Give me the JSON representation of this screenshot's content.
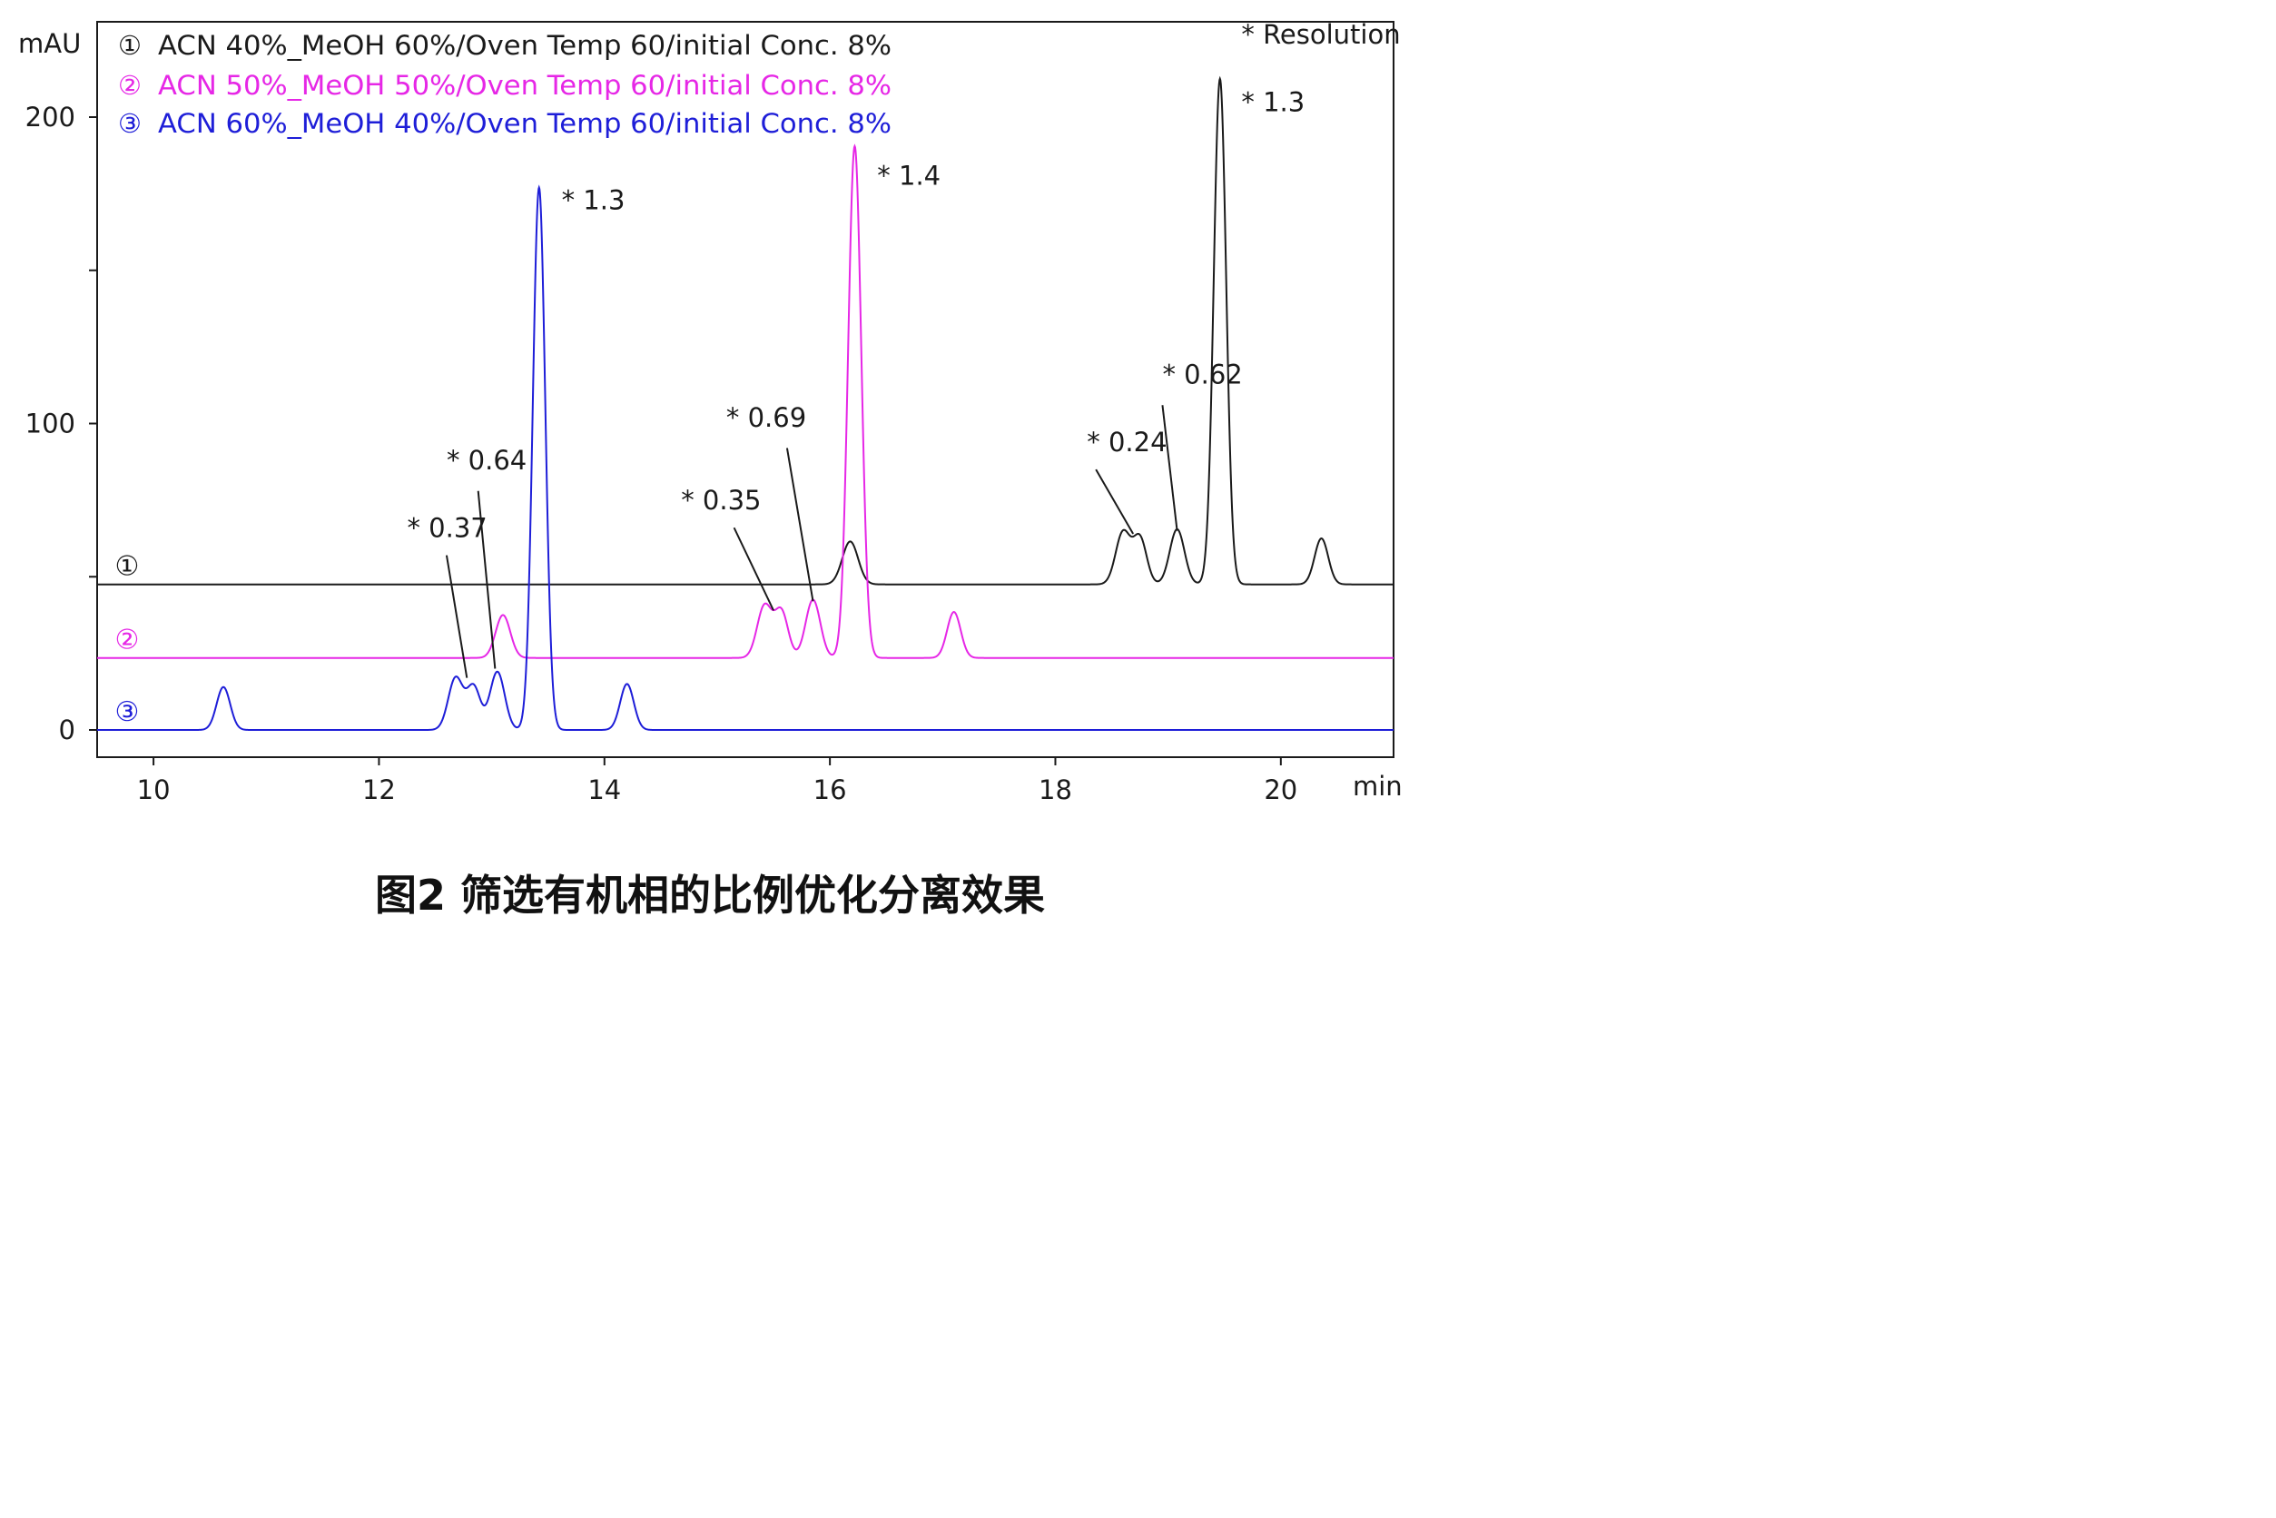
{
  "figure": {
    "caption": "图2 筛选有机相的比例优化分离效果"
  },
  "chart_data": {
    "type": "line",
    "x_unit": "min",
    "y_unit": "mAU",
    "xlim": [
      9.5,
      21.0
    ],
    "ylim": [
      -8,
      230
    ],
    "x_ticks": [
      10,
      12,
      14,
      16,
      18,
      20
    ],
    "x_tick_labels": [
      "10",
      "12",
      "14",
      "16",
      "18",
      "20"
    ],
    "y_ticks": [
      0,
      100,
      200
    ],
    "y_tick_labels": [
      "0",
      "100",
      "200"
    ],
    "y_minor_ticks": [
      50,
      150
    ],
    "grid": false,
    "legend_position": "top-left",
    "series": [
      {
        "id": 1,
        "marker": "①",
        "name": "ACN 40%_MeOH 60%/Oven Temp 60/initial Conc. 8%",
        "color": "#1a1a1a",
        "baseline": 47.5,
        "peaks": [
          {
            "t": 16.18,
            "h": 14,
            "w": 0.07
          },
          {
            "t": 18.6,
            "h": 17,
            "w": 0.065
          },
          {
            "t": 18.75,
            "h": 15,
            "w": 0.06
          },
          {
            "t": 19.08,
            "h": 18,
            "w": 0.065
          },
          {
            "t": 19.46,
            "h": 165,
            "w": 0.055
          },
          {
            "t": 20.36,
            "h": 15,
            "w": 0.06
          }
        ]
      },
      {
        "id": 2,
        "marker": "②",
        "name": "ACN 50%_MeOH 50%/Oven Temp 60/initial Conc. 8%",
        "color": "#e627e6",
        "baseline": 23.5,
        "peaks": [
          {
            "t": 13.1,
            "h": 14,
            "w": 0.065
          },
          {
            "t": 15.42,
            "h": 17,
            "w": 0.065
          },
          {
            "t": 15.57,
            "h": 15,
            "w": 0.06
          },
          {
            "t": 15.85,
            "h": 19,
            "w": 0.065
          },
          {
            "t": 16.22,
            "h": 167,
            "w": 0.058
          },
          {
            "t": 17.1,
            "h": 15,
            "w": 0.06
          }
        ]
      },
      {
        "id": 3,
        "marker": "③",
        "name": "ACN 60%_MeOH 40%/Oven Temp 60/initial Conc. 8%",
        "color": "#1e1ed8",
        "baseline": 0,
        "peaks": [
          {
            "t": 10.62,
            "h": 14,
            "w": 0.06
          },
          {
            "t": 12.68,
            "h": 17,
            "w": 0.065
          },
          {
            "t": 12.84,
            "h": 14,
            "w": 0.06
          },
          {
            "t": 13.05,
            "h": 19,
            "w": 0.065
          },
          {
            "t": 13.42,
            "h": 177,
            "w": 0.055
          },
          {
            "t": 14.2,
            "h": 15,
            "w": 0.06
          }
        ]
      }
    ],
    "annotations": [
      {
        "label": "* Resolution",
        "x": 19.65,
        "y": 224,
        "pointer": null
      },
      {
        "label": "* 1.3",
        "x": 19.65,
        "y": 202,
        "pointer": null
      },
      {
        "label": "* 1.4",
        "x": 16.42,
        "y": 178,
        "pointer": null
      },
      {
        "label": "* 1.3",
        "x": 13.62,
        "y": 170,
        "pointer": null
      },
      {
        "label": "* 0.62",
        "x": 18.95,
        "y": 113,
        "pointer": [
          18.95,
          106,
          19.08,
          65
        ]
      },
      {
        "label": "* 0.24",
        "x": 18.28,
        "y": 91,
        "pointer": [
          18.36,
          85,
          18.69,
          64
        ]
      },
      {
        "label": "* 0.69",
        "x": 15.08,
        "y": 99,
        "pointer": [
          15.62,
          92,
          15.85,
          42
        ]
      },
      {
        "label": "* 0.35",
        "x": 14.68,
        "y": 72,
        "pointer": [
          15.15,
          66,
          15.5,
          39
        ]
      },
      {
        "label": "* 0.64",
        "x": 12.6,
        "y": 85,
        "pointer": [
          12.88,
          78,
          13.03,
          20
        ]
      },
      {
        "label": "* 0.37",
        "x": 12.25,
        "y": 63,
        "pointer": [
          12.6,
          57,
          12.78,
          17
        ]
      }
    ]
  }
}
